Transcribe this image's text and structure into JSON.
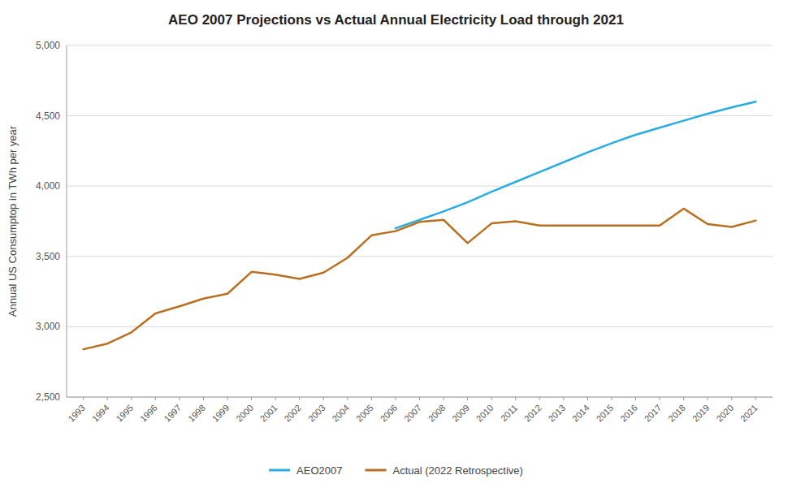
{
  "chart_data": {
    "type": "line",
    "title": "AEO 2007 Projections vs Actual Annual Electricity Load through 2021",
    "ylabel": "Annual US Consumptop in TWh per year",
    "x": [
      1993,
      1994,
      1995,
      1996,
      1997,
      1998,
      1999,
      2000,
      2001,
      2002,
      2003,
      2004,
      2005,
      2006,
      2007,
      2008,
      2009,
      2010,
      2011,
      2012,
      2013,
      2014,
      2015,
      2016,
      2017,
      2018,
      2019,
      2020,
      2021
    ],
    "series": [
      {
        "name": "AEO2007",
        "color": "#2AACE2",
        "values": [
          null,
          null,
          null,
          null,
          null,
          null,
          null,
          null,
          null,
          null,
          null,
          null,
          null,
          3700,
          3760,
          3820,
          3885,
          3960,
          4030,
          4100,
          4170,
          4240,
          4305,
          4365,
          4415,
          4465,
          4515,
          4560,
          4600
        ]
      },
      {
        "name": "Actual (2022 Retrospective)",
        "color": "#B87020",
        "values": [
          2840,
          2880,
          2960,
          3095,
          3145,
          3200,
          3235,
          3390,
          3370,
          3340,
          3385,
          3490,
          3650,
          3680,
          3745,
          3760,
          3595,
          3735,
          3750,
          3720,
          3720,
          3720,
          3720,
          3720,
          3720,
          3840,
          3730,
          3710,
          3755
        ]
      }
    ],
    "xlim": [
      1992.3,
      2021.7
    ],
    "xticks": [
      1993,
      1994,
      1995,
      1996,
      1997,
      1998,
      1999,
      2000,
      2001,
      2002,
      2003,
      2004,
      2005,
      2006,
      2007,
      2008,
      2009,
      2010,
      2011,
      2012,
      2013,
      2014,
      2015,
      2016,
      2017,
      2018,
      2019,
      2020,
      2021
    ],
    "ylim": [
      2500,
      5000
    ],
    "yticks": [
      {
        "value": 2500,
        "label": "2,500"
      },
      {
        "value": 3000,
        "label": "3,000"
      },
      {
        "value": 3500,
        "label": "3,500"
      },
      {
        "value": 4000,
        "label": "4,000"
      },
      {
        "value": 4500,
        "label": "4,500"
      },
      {
        "value": 5000,
        "label": "5,000"
      }
    ],
    "grid": true,
    "legend": "bottom"
  }
}
